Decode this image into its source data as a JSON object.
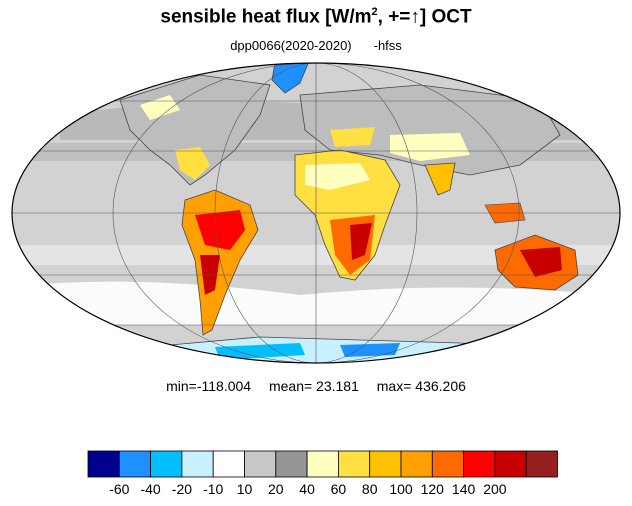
{
  "title": {
    "text": "sensible heat flux [W/m",
    "sup": "2",
    "suffix": ", +=↑]  OCT"
  },
  "subtitle": {
    "run": "dpp0066(2020-2020)",
    "var": "-hfss"
  },
  "stats": {
    "min": "min=-118.004",
    "mean": "mean=  23.181",
    "max": "max= 436.206"
  },
  "colorbar": {
    "colors": [
      "#00008f",
      "#1e90ff",
      "#00bfff",
      "#c8f0ff",
      "#ffffff",
      "#c8c8c8",
      "#969696",
      "#ffffc0",
      "#ffe040",
      "#ffc000",
      "#ffa000",
      "#ff6a00",
      "#ff0000",
      "#c80000",
      "#962020"
    ],
    "labels": [
      "-60",
      "-40",
      "-20",
      "-10",
      "10",
      "20",
      "40",
      "60",
      "80",
      "100",
      "120",
      "140",
      "200"
    ]
  }
}
